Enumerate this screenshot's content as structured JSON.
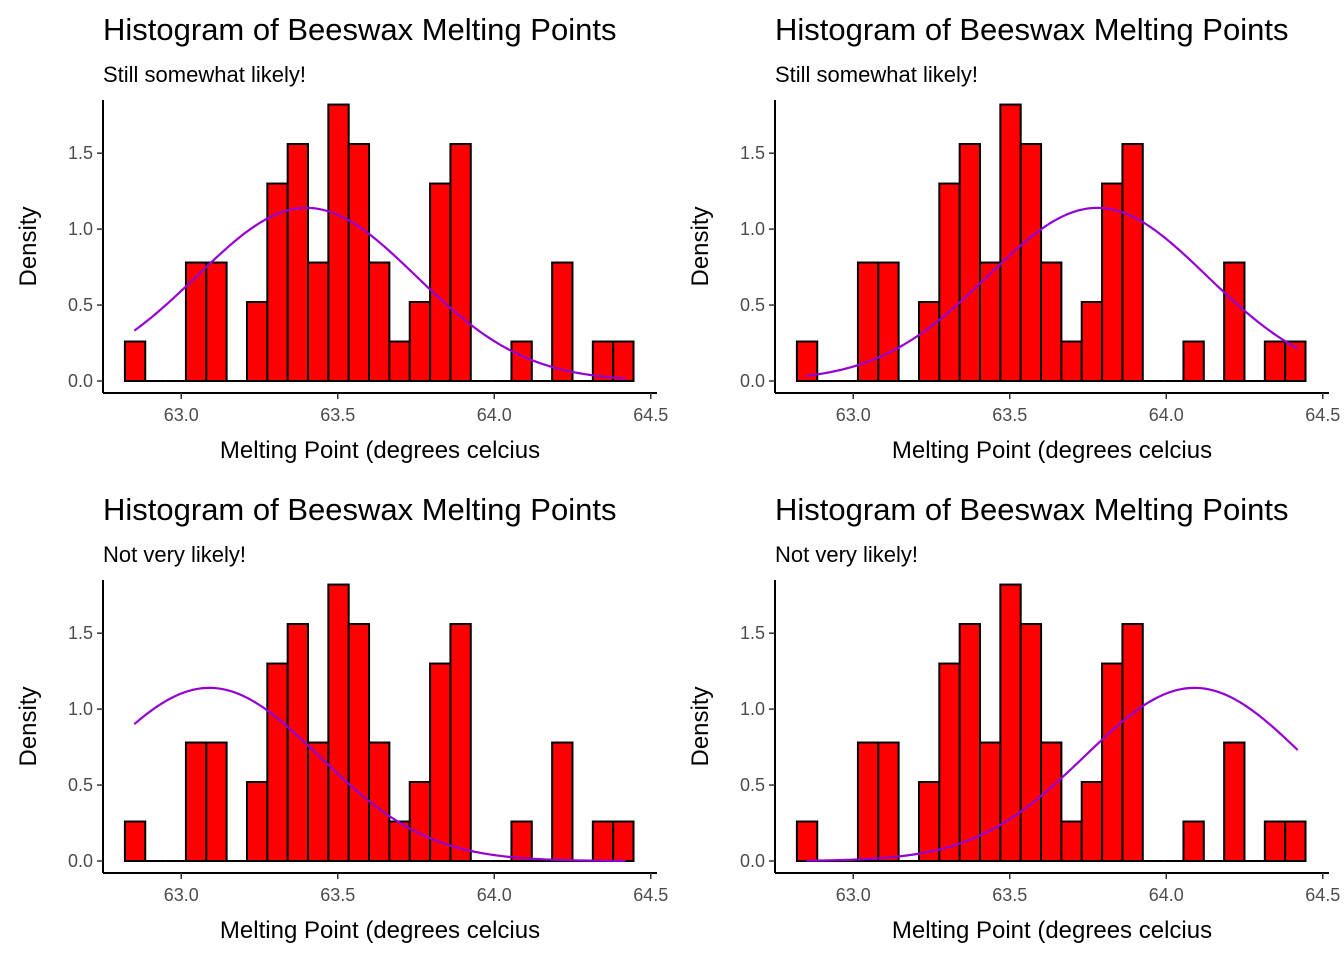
{
  "chart_data": [
    {
      "type": "bar",
      "title": "Histogram of Beeswax Melting Points",
      "subtitle": "Still somewhat likely!",
      "xlabel": "Melting Point (degrees celcius",
      "ylabel": "Density",
      "xlim": [
        62.75,
        64.52
      ],
      "ylim": [
        0,
        1.85
      ],
      "xticks": [
        "63.0",
        "63.5",
        "64.0",
        "64.5"
      ],
      "xtick_values": [
        63.0,
        63.5,
        64.0,
        64.5
      ],
      "yticks": [
        "0.0",
        "0.5",
        "1.0",
        "1.5"
      ],
      "ytick_values": [
        0.0,
        0.5,
        1.0,
        1.5
      ],
      "bin_width": 0.065,
      "bins": [
        62.82,
        62.885,
        62.95,
        63.015,
        63.08,
        63.145,
        63.21,
        63.275,
        63.34,
        63.405,
        63.47,
        63.535,
        63.6,
        63.665,
        63.73,
        63.795,
        63.86,
        63.925,
        63.99,
        64.055,
        64.12,
        64.185,
        64.25,
        64.315,
        64.38
      ],
      "values": [
        0.26,
        0,
        0,
        0.78,
        0.78,
        0,
        0.52,
        1.3,
        1.56,
        0.78,
        1.82,
        1.56,
        0.78,
        0.26,
        0.52,
        1.3,
        1.56,
        0,
        0,
        0.26,
        0,
        0.78,
        0,
        0.26,
        0.26
      ],
      "bar_fill": "#ff0000",
      "bar_stroke": "#000000",
      "curve": {
        "mean": 63.4,
        "sd": 0.35,
        "x_range": [
          62.85,
          64.42
        ],
        "color": "#9400d3"
      },
      "grid": false,
      "legend": "none"
    },
    {
      "type": "bar",
      "title": "Histogram of Beeswax Melting Points",
      "subtitle": "Still somewhat likely!",
      "xlabel": "Melting Point (degrees celcius",
      "ylabel": "Density",
      "xlim": [
        62.75,
        64.52
      ],
      "ylim": [
        0,
        1.85
      ],
      "xticks": [
        "63.0",
        "63.5",
        "64.0",
        "64.5"
      ],
      "xtick_values": [
        63.0,
        63.5,
        64.0,
        64.5
      ],
      "yticks": [
        "0.0",
        "0.5",
        "1.0",
        "1.5"
      ],
      "ytick_values": [
        0.0,
        0.5,
        1.0,
        1.5
      ],
      "bin_width": 0.065,
      "bins": [
        62.82,
        62.885,
        62.95,
        63.015,
        63.08,
        63.145,
        63.21,
        63.275,
        63.34,
        63.405,
        63.47,
        63.535,
        63.6,
        63.665,
        63.73,
        63.795,
        63.86,
        63.925,
        63.99,
        64.055,
        64.12,
        64.185,
        64.25,
        64.315,
        64.38
      ],
      "values": [
        0.26,
        0,
        0,
        0.78,
        0.78,
        0,
        0.52,
        1.3,
        1.56,
        0.78,
        1.82,
        1.56,
        0.78,
        0.26,
        0.52,
        1.3,
        1.56,
        0,
        0,
        0.26,
        0,
        0.78,
        0,
        0.26,
        0.26
      ],
      "bar_fill": "#ff0000",
      "bar_stroke": "#000000",
      "curve": {
        "mean": 63.78,
        "sd": 0.35,
        "x_range": [
          62.85,
          64.42
        ],
        "color": "#9400d3"
      },
      "grid": false,
      "legend": "none"
    },
    {
      "type": "bar",
      "title": "Histogram of Beeswax Melting Points",
      "subtitle": "Not very likely!",
      "xlabel": "Melting Point (degrees celcius",
      "ylabel": "Density",
      "xlim": [
        62.75,
        64.52
      ],
      "ylim": [
        0,
        1.85
      ],
      "xticks": [
        "63.0",
        "63.5",
        "64.0",
        "64.5"
      ],
      "xtick_values": [
        63.0,
        63.5,
        64.0,
        64.5
      ],
      "yticks": [
        "0.0",
        "0.5",
        "1.0",
        "1.5"
      ],
      "ytick_values": [
        0.0,
        0.5,
        1.0,
        1.5
      ],
      "bin_width": 0.065,
      "bins": [
        62.82,
        62.885,
        62.95,
        63.015,
        63.08,
        63.145,
        63.21,
        63.275,
        63.34,
        63.405,
        63.47,
        63.535,
        63.6,
        63.665,
        63.73,
        63.795,
        63.86,
        63.925,
        63.99,
        64.055,
        64.12,
        64.185,
        64.25,
        64.315,
        64.38
      ],
      "values": [
        0.26,
        0,
        0,
        0.78,
        0.78,
        0,
        0.52,
        1.3,
        1.56,
        0.78,
        1.82,
        1.56,
        0.78,
        0.26,
        0.52,
        1.3,
        1.56,
        0,
        0,
        0.26,
        0,
        0.78,
        0,
        0.26,
        0.26
      ],
      "bar_fill": "#ff0000",
      "bar_stroke": "#000000",
      "curve": {
        "mean": 63.09,
        "sd": 0.35,
        "x_range": [
          62.85,
          64.42
        ],
        "color": "#9400d3"
      },
      "grid": false,
      "legend": "none"
    },
    {
      "type": "bar",
      "title": "Histogram of Beeswax Melting Points",
      "subtitle": "Not very likely!",
      "xlabel": "Melting Point (degrees celcius",
      "ylabel": "Density",
      "xlim": [
        62.75,
        64.52
      ],
      "ylim": [
        0,
        1.85
      ],
      "xticks": [
        "63.0",
        "63.5",
        "64.0",
        "64.5"
      ],
      "xtick_values": [
        63.0,
        63.5,
        64.0,
        64.5
      ],
      "yticks": [
        "0.0",
        "0.5",
        "1.0",
        "1.5"
      ],
      "ytick_values": [
        0.0,
        0.5,
        1.0,
        1.5
      ],
      "bin_width": 0.065,
      "bins": [
        62.82,
        62.885,
        62.95,
        63.015,
        63.08,
        63.145,
        63.21,
        63.275,
        63.34,
        63.405,
        63.47,
        63.535,
        63.6,
        63.665,
        63.73,
        63.795,
        63.86,
        63.925,
        63.99,
        64.055,
        64.12,
        64.185,
        64.25,
        64.315,
        64.38
      ],
      "values": [
        0.26,
        0,
        0,
        0.78,
        0.78,
        0,
        0.52,
        1.3,
        1.56,
        0.78,
        1.82,
        1.56,
        0.78,
        0.26,
        0.52,
        1.3,
        1.56,
        0,
        0,
        0.26,
        0,
        0.78,
        0,
        0.26,
        0.26
      ],
      "bar_fill": "#ff0000",
      "bar_stroke": "#000000",
      "curve": {
        "mean": 64.09,
        "sd": 0.35,
        "x_range": [
          62.85,
          64.42
        ],
        "color": "#9400d3"
      },
      "grid": false,
      "legend": "none"
    }
  ]
}
